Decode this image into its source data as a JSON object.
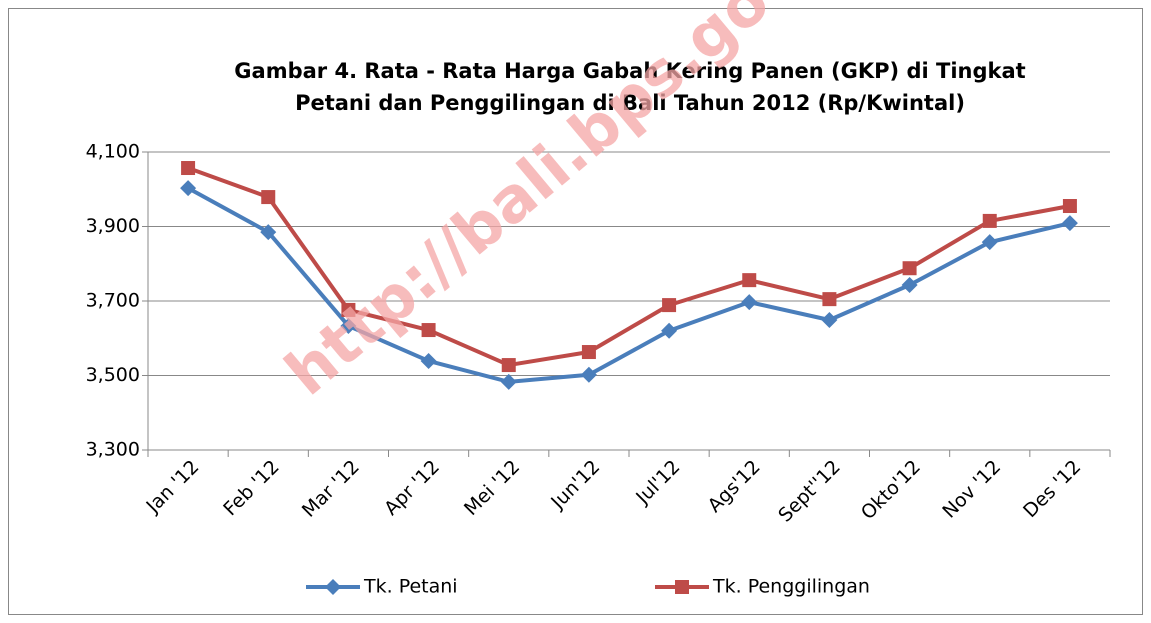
{
  "chart_data": {
    "type": "line",
    "title": [
      "Gambar 4. Rata - Rata Harga Gabah Kering Panen (GKP) di Tingkat",
      "Petani dan Penggilingan di Bali Tahun 2012 (Rp/Kwintal)"
    ],
    "watermark": "http://bali.bps.go",
    "categories": [
      "Jan '12",
      "Feb '12",
      "Mar '12",
      "Apr '12",
      "Mei '12",
      "Jun'12",
      "Jul'12",
      "Ags'12",
      "Sept''12",
      "Okto'12",
      "Nov '12",
      "Des '12"
    ],
    "series": [
      {
        "name": "Tk. Petani",
        "color": "#4a7ebb",
        "marker": "diamond",
        "values": [
          4003,
          3885,
          3633,
          3539,
          3483,
          3502,
          3620,
          3697,
          3649,
          3743,
          3858,
          3909
        ]
      },
      {
        "name": "Tk. Penggilingan",
        "color": "#be4b48",
        "marker": "square",
        "values": [
          4057,
          3979,
          3676,
          3622,
          3528,
          3563,
          3689,
          3756,
          3705,
          3788,
          3915,
          3955
        ]
      }
    ],
    "ylim": [
      3300,
      4100
    ],
    "yticks": [
      {
        "value": 3300,
        "label": "3,300"
      },
      {
        "value": 3500,
        "label": "3,500"
      },
      {
        "value": 3700,
        "label": "3,700"
      },
      {
        "value": 3900,
        "label": "3,900"
      },
      {
        "value": 4100,
        "label": "4,100"
      }
    ],
    "grid": true,
    "legend": "bottom"
  }
}
